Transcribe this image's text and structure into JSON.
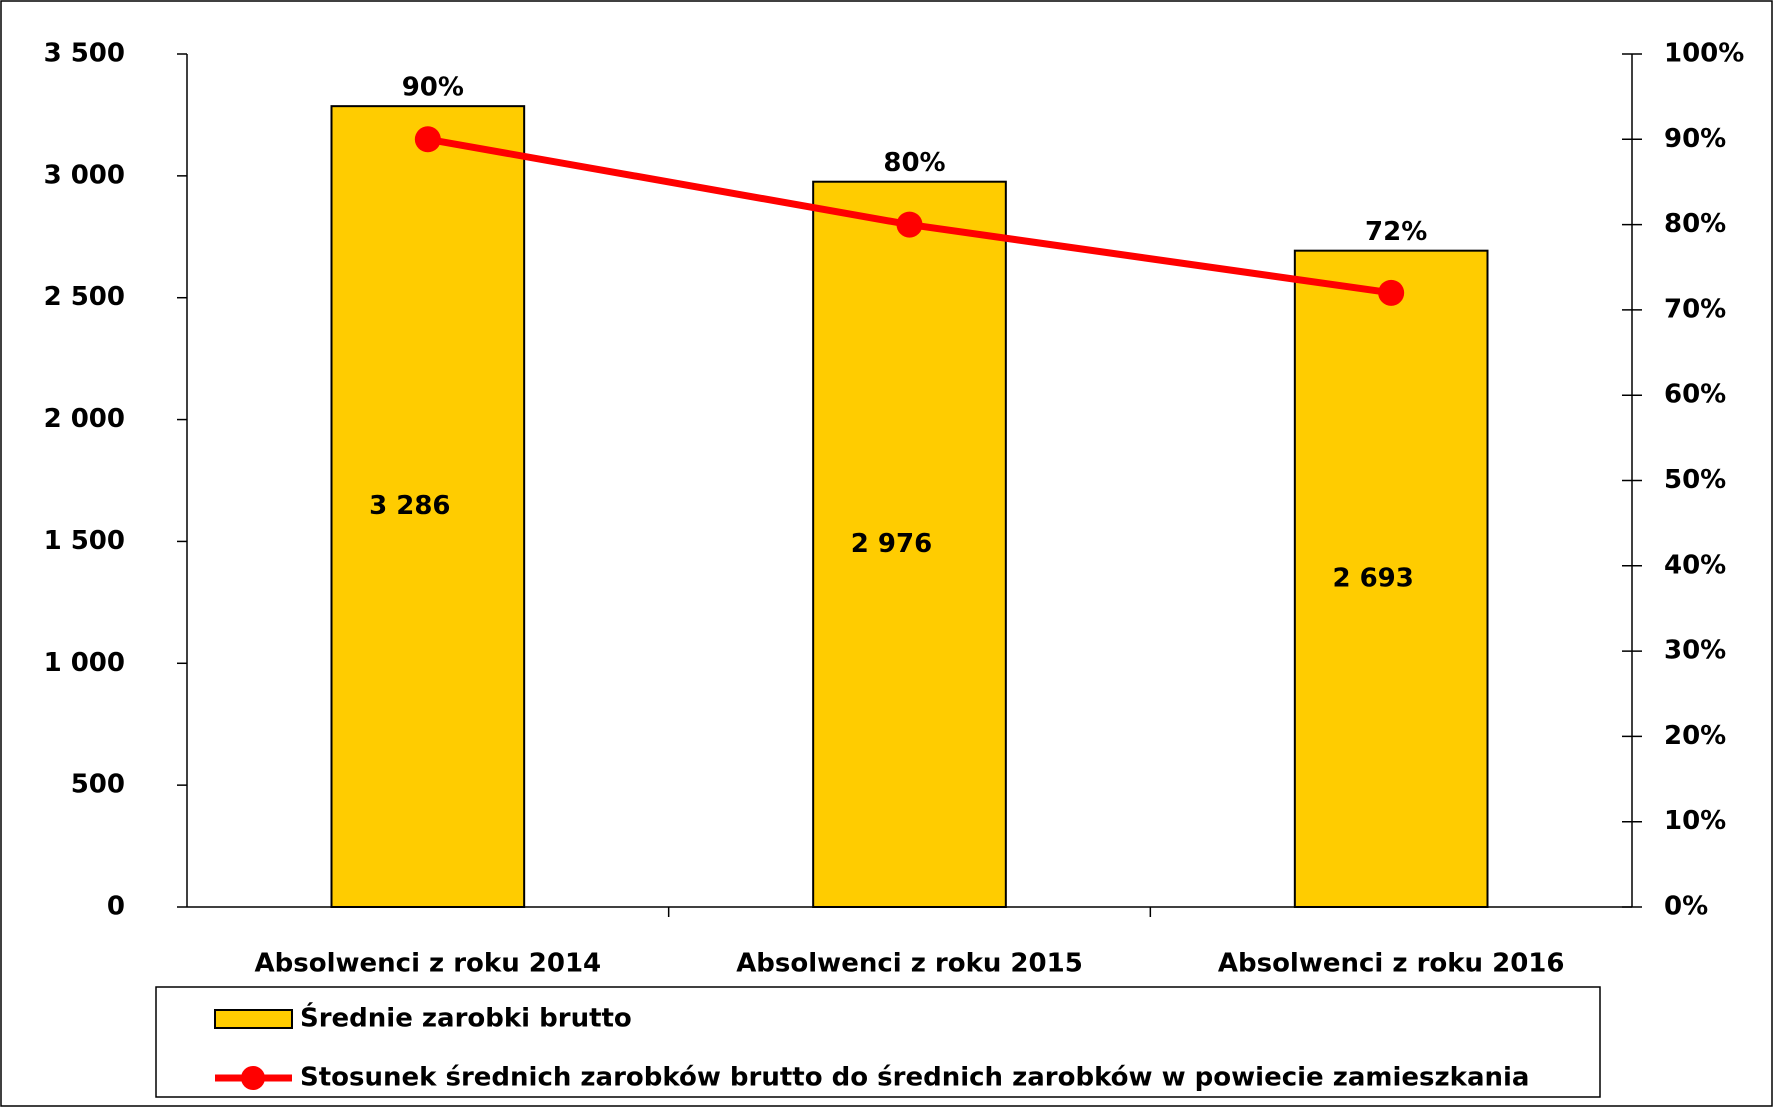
{
  "chart_data": {
    "type": "bar",
    "categories": [
      "Absolwenci z roku 2014",
      "Absolwenci z roku 2015",
      "Absolwenci z roku 2016"
    ],
    "series": [
      {
        "name": "Średnie zarobki brutto",
        "type": "bar",
        "color": "#FFCC00",
        "values": [
          3286,
          2976,
          2693
        ],
        "value_labels": [
          "3 286",
          "2 976",
          "2 693"
        ]
      },
      {
        "name": "Stosunek średnich zarobków brutto do średnich zarobków w powiecie zamieszkania",
        "type": "line",
        "axis": "y2",
        "color": "#FF0000",
        "values": [
          90,
          80,
          72
        ],
        "value_labels": [
          "90%",
          "80%",
          "72%"
        ]
      }
    ],
    "ylim": [
      0,
      3500
    ],
    "yticks": [
      0,
      500,
      {
        "value": 1000,
        "label": "1 000"
      },
      {
        "value": 1500,
        "label": "1 500"
      },
      {
        "value": 2000,
        "label": "2 000"
      },
      {
        "value": 2500,
        "label": "2 500"
      },
      {
        "value": 3000,
        "label": "3 000"
      },
      {
        "value": 3500,
        "label": "3 500"
      }
    ],
    "y2lim": [
      0,
      100
    ],
    "y2ticks": [
      {
        "value": 0,
        "label": "0%"
      },
      {
        "value": 10,
        "label": "10%"
      },
      {
        "value": 20,
        "label": "20%"
      },
      {
        "value": 30,
        "label": "30%"
      },
      {
        "value": 40,
        "label": "40%"
      },
      {
        "value": 50,
        "label": "50%"
      },
      {
        "value": 60,
        "label": "60%"
      },
      {
        "value": 70,
        "label": "70%"
      },
      {
        "value": 80,
        "label": "80%"
      },
      {
        "value": 90,
        "label": "90%"
      },
      {
        "value": 100,
        "label": "100%"
      }
    ],
    "grid": false,
    "legend": "bottom"
  }
}
